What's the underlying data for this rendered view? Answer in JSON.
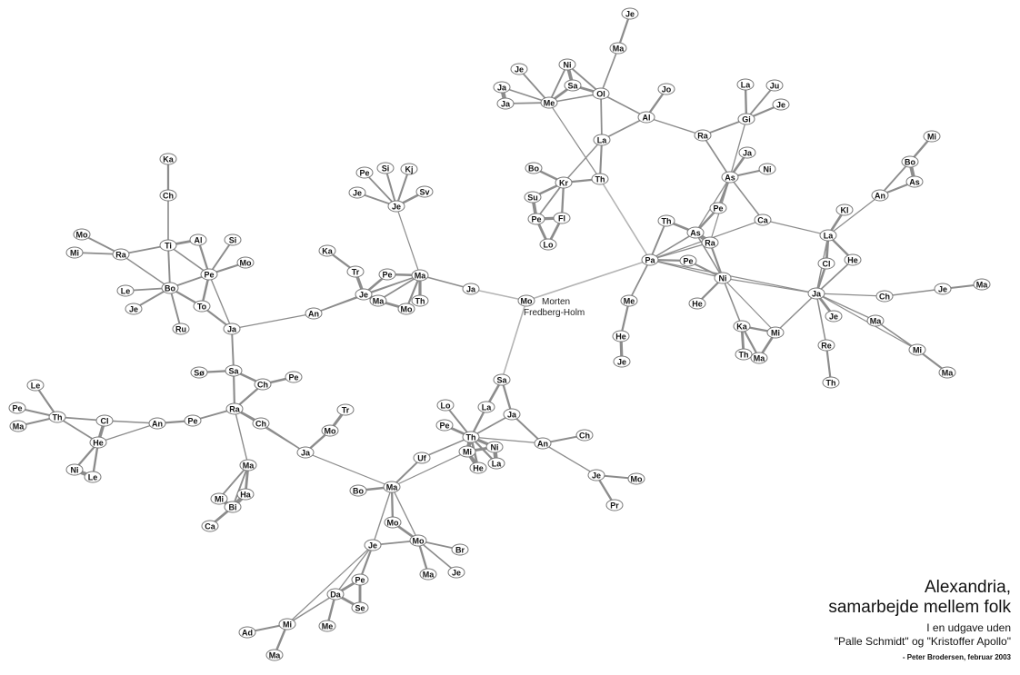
{
  "center_person": {
    "first": "Morten",
    "last": "Fredberg-Holm"
  },
  "title": {
    "line1": "Alexandria,",
    "line2": "samarbejde mellem folk"
  },
  "subtitle": {
    "line1": "I en udgave uden",
    "line2": "\"Palle Schmidt\" og \"Kristoffer Apollo\""
  },
  "credit": "- Peter Brodersen, februar 2003",
  "colors": {
    "edge": "#8c8c8c",
    "edge_light": "#b4b4b4",
    "node_fill": "#ffffff",
    "node_stroke": "#777777"
  },
  "nodes": [
    {
      "id": "Mo_c",
      "label": "Mo"
    },
    {
      "id": "Je_top",
      "label": "Je"
    },
    {
      "id": "Ma_top",
      "label": "Ma"
    },
    {
      "id": "Ol",
      "label": "Ol"
    },
    {
      "id": "Ni_top",
      "label": "Ni"
    },
    {
      "id": "Sa_top",
      "label": "Sa"
    },
    {
      "id": "Me_top",
      "label": "Me"
    },
    {
      "id": "Je_me",
      "label": "Je"
    },
    {
      "id": "Ja_me1",
      "label": "Ja"
    },
    {
      "id": "Ja_me2",
      "label": "Ja"
    },
    {
      "id": "Jo",
      "label": "Jo"
    },
    {
      "id": "Al_top",
      "label": "Al"
    },
    {
      "id": "La_top",
      "label": "La"
    },
    {
      "id": "Th_top",
      "label": "Th"
    },
    {
      "id": "Kr",
      "label": "Kr"
    },
    {
      "id": "Bo_kr",
      "label": "Bo"
    },
    {
      "id": "Su",
      "label": "Su"
    },
    {
      "id": "Pe_kr",
      "label": "Pe"
    },
    {
      "id": "Fl",
      "label": "Fl"
    },
    {
      "id": "Lo_kr",
      "label": "Lo"
    },
    {
      "id": "Ra_top",
      "label": "Ra"
    },
    {
      "id": "La_gi",
      "label": "La"
    },
    {
      "id": "Ju",
      "label": "Ju"
    },
    {
      "id": "Gi",
      "label": "Gi"
    },
    {
      "id": "Je_gi",
      "label": "Je"
    },
    {
      "id": "Ja_as",
      "label": "Ja"
    },
    {
      "id": "As_r",
      "label": "As"
    },
    {
      "id": "Ni_as",
      "label": "Ni"
    },
    {
      "id": "Mi_r",
      "label": "Mi"
    },
    {
      "id": "Bo_r",
      "label": "Bo"
    },
    {
      "id": "As_rr",
      "label": "As"
    },
    {
      "id": "An_r",
      "label": "An"
    },
    {
      "id": "Kl",
      "label": "Kl"
    },
    {
      "id": "La_r",
      "label": "La"
    },
    {
      "id": "Ca_r",
      "label": "Ca"
    },
    {
      "id": "Pe_as",
      "label": "Pe"
    },
    {
      "id": "Th_pa",
      "label": "Th"
    },
    {
      "id": "As_pa",
      "label": "As"
    },
    {
      "id": "Ra_pa",
      "label": "Ra"
    },
    {
      "id": "Pa",
      "label": "Pa"
    },
    {
      "id": "Pe_pa",
      "label": "Pe"
    },
    {
      "id": "Ni_r",
      "label": "Ni"
    },
    {
      "id": "He_ni",
      "label": "He"
    },
    {
      "id": "Cl_r",
      "label": "Cl"
    },
    {
      "id": "He_r",
      "label": "He"
    },
    {
      "id": "Ja_r",
      "label": "Ja"
    },
    {
      "id": "Ch_r",
      "label": "Ch"
    },
    {
      "id": "Je_r",
      "label": "Je"
    },
    {
      "id": "Ma_rr",
      "label": "Ma"
    },
    {
      "id": "Je_ja",
      "label": "Je"
    },
    {
      "id": "Ma_ja",
      "label": "Ma"
    },
    {
      "id": "Mi_ja",
      "label": "Mi"
    },
    {
      "id": "Ma_mi",
      "label": "Ma"
    },
    {
      "id": "Re",
      "label": "Re"
    },
    {
      "id": "Th_re",
      "label": "Th"
    },
    {
      "id": "Ka_r",
      "label": "Ka"
    },
    {
      "id": "Mi_ka",
      "label": "Mi"
    },
    {
      "id": "Th_ka",
      "label": "Th"
    },
    {
      "id": "Ma_ka",
      "label": "Ma"
    },
    {
      "id": "Me_pa",
      "label": "Me"
    },
    {
      "id": "He_pa",
      "label": "He"
    },
    {
      "id": "Je_pa",
      "label": "Je"
    },
    {
      "id": "Pe_je",
      "label": "Pe"
    },
    {
      "id": "Si_je",
      "label": "Si"
    },
    {
      "id": "Kj",
      "label": "Kj"
    },
    {
      "id": "Sv",
      "label": "Sv"
    },
    {
      "id": "Je_je",
      "label": "Je"
    },
    {
      "id": "Je_c",
      "label": "Je"
    },
    {
      "id": "Ka_l",
      "label": "Ka"
    },
    {
      "id": "Tr_l",
      "label": "Tr"
    },
    {
      "id": "Pe_ma",
      "label": "Pe"
    },
    {
      "id": "Ma_c",
      "label": "Ma"
    },
    {
      "id": "Ja_ma",
      "label": "Ja"
    },
    {
      "id": "Je_ma",
      "label": "Je"
    },
    {
      "id": "Ma_ma",
      "label": "Ma"
    },
    {
      "id": "Th_ma",
      "label": "Th"
    },
    {
      "id": "Mo_ma",
      "label": "Mo"
    },
    {
      "id": "An_l",
      "label": "An"
    },
    {
      "id": "Ka_l2",
      "label": "Ka"
    },
    {
      "id": "Ch_l",
      "label": "Ch"
    },
    {
      "id": "Mo_l",
      "label": "Mo"
    },
    {
      "id": "Mi_l",
      "label": "Mi"
    },
    {
      "id": "Ra_l",
      "label": "Ra"
    },
    {
      "id": "Ti",
      "label": "Ti"
    },
    {
      "id": "Al_l",
      "label": "Al"
    },
    {
      "id": "Si_l",
      "label": "Si"
    },
    {
      "id": "Pe_l",
      "label": "Pe"
    },
    {
      "id": "Mo_pe",
      "label": "Mo"
    },
    {
      "id": "Le_l",
      "label": "Le"
    },
    {
      "id": "Bo_l",
      "label": "Bo"
    },
    {
      "id": "Je_bo",
      "label": "Je"
    },
    {
      "id": "To",
      "label": "To"
    },
    {
      "id": "Ru",
      "label": "Ru"
    },
    {
      "id": "Ja_l",
      "label": "Ja"
    },
    {
      "id": "So",
      "label": "Sø"
    },
    {
      "id": "Sa_l",
      "label": "Sa"
    },
    {
      "id": "Ch_sa",
      "label": "Ch"
    },
    {
      "id": "Pe_sa",
      "label": "Pe"
    },
    {
      "id": "Le_th",
      "label": "Le"
    },
    {
      "id": "Pe_th",
      "label": "Pe"
    },
    {
      "id": "Ma_th",
      "label": "Ma"
    },
    {
      "id": "Th_l",
      "label": "Th"
    },
    {
      "id": "Cl_l",
      "label": "Cl"
    },
    {
      "id": "An_ll",
      "label": "An"
    },
    {
      "id": "Pe_ra",
      "label": "Pe"
    },
    {
      "id": "Ra_ll",
      "label": "Ra"
    },
    {
      "id": "He_l",
      "label": "He"
    },
    {
      "id": "Ni_l",
      "label": "Ni"
    },
    {
      "id": "Le_he",
      "label": "Le"
    },
    {
      "id": "Ch_ra",
      "label": "Ch"
    },
    {
      "id": "Tr_b",
      "label": "Tr"
    },
    {
      "id": "Mo_b",
      "label": "Mo"
    },
    {
      "id": "Ja_b",
      "label": "Ja"
    },
    {
      "id": "Ma_b",
      "label": "Ma"
    },
    {
      "id": "Ha",
      "label": "Ha"
    },
    {
      "id": "Mi_b",
      "label": "Mi"
    },
    {
      "id": "Bi",
      "label": "Bi"
    },
    {
      "id": "Ca_b",
      "label": "Ca"
    },
    {
      "id": "Sa_b",
      "label": "Sa"
    },
    {
      "id": "Lo_b",
      "label": "Lo"
    },
    {
      "id": "La_b",
      "label": "La"
    },
    {
      "id": "Ja_sa",
      "label": "Ja"
    },
    {
      "id": "Pe_b",
      "label": "Pe"
    },
    {
      "id": "Th_b",
      "label": "Th"
    },
    {
      "id": "Mi_th",
      "label": "Mi"
    },
    {
      "id": "Ni_th",
      "label": "Ni"
    },
    {
      "id": "He_th",
      "label": "He"
    },
    {
      "id": "La_th",
      "label": "La"
    },
    {
      "id": "An_b",
      "label": "An"
    },
    {
      "id": "Ch_b",
      "label": "Ch"
    },
    {
      "id": "Je_an",
      "label": "Je"
    },
    {
      "id": "Mo_an",
      "label": "Mo"
    },
    {
      "id": "Pr",
      "label": "Pr"
    },
    {
      "id": "Uf",
      "label": "Uf"
    },
    {
      "id": "Ma_bc",
      "label": "Ma"
    },
    {
      "id": "Bo_b",
      "label": "Bo"
    },
    {
      "id": "Mo_bc",
      "label": "Mo"
    },
    {
      "id": "Je_bc",
      "label": "Je"
    },
    {
      "id": "Mo_br",
      "label": "Mo"
    },
    {
      "id": "Br",
      "label": "Br"
    },
    {
      "id": "Ma_br",
      "label": "Ma"
    },
    {
      "id": "Je_br",
      "label": "Je"
    },
    {
      "id": "Pe_da",
      "label": "Pe"
    },
    {
      "id": "Da",
      "label": "Da"
    },
    {
      "id": "Se",
      "label": "Se"
    },
    {
      "id": "Me_da",
      "label": "Me"
    },
    {
      "id": "Mi_da",
      "label": "Mi"
    },
    {
      "id": "Ad",
      "label": "Ad"
    },
    {
      "id": "Ma_da",
      "label": "Ma"
    }
  ]
}
